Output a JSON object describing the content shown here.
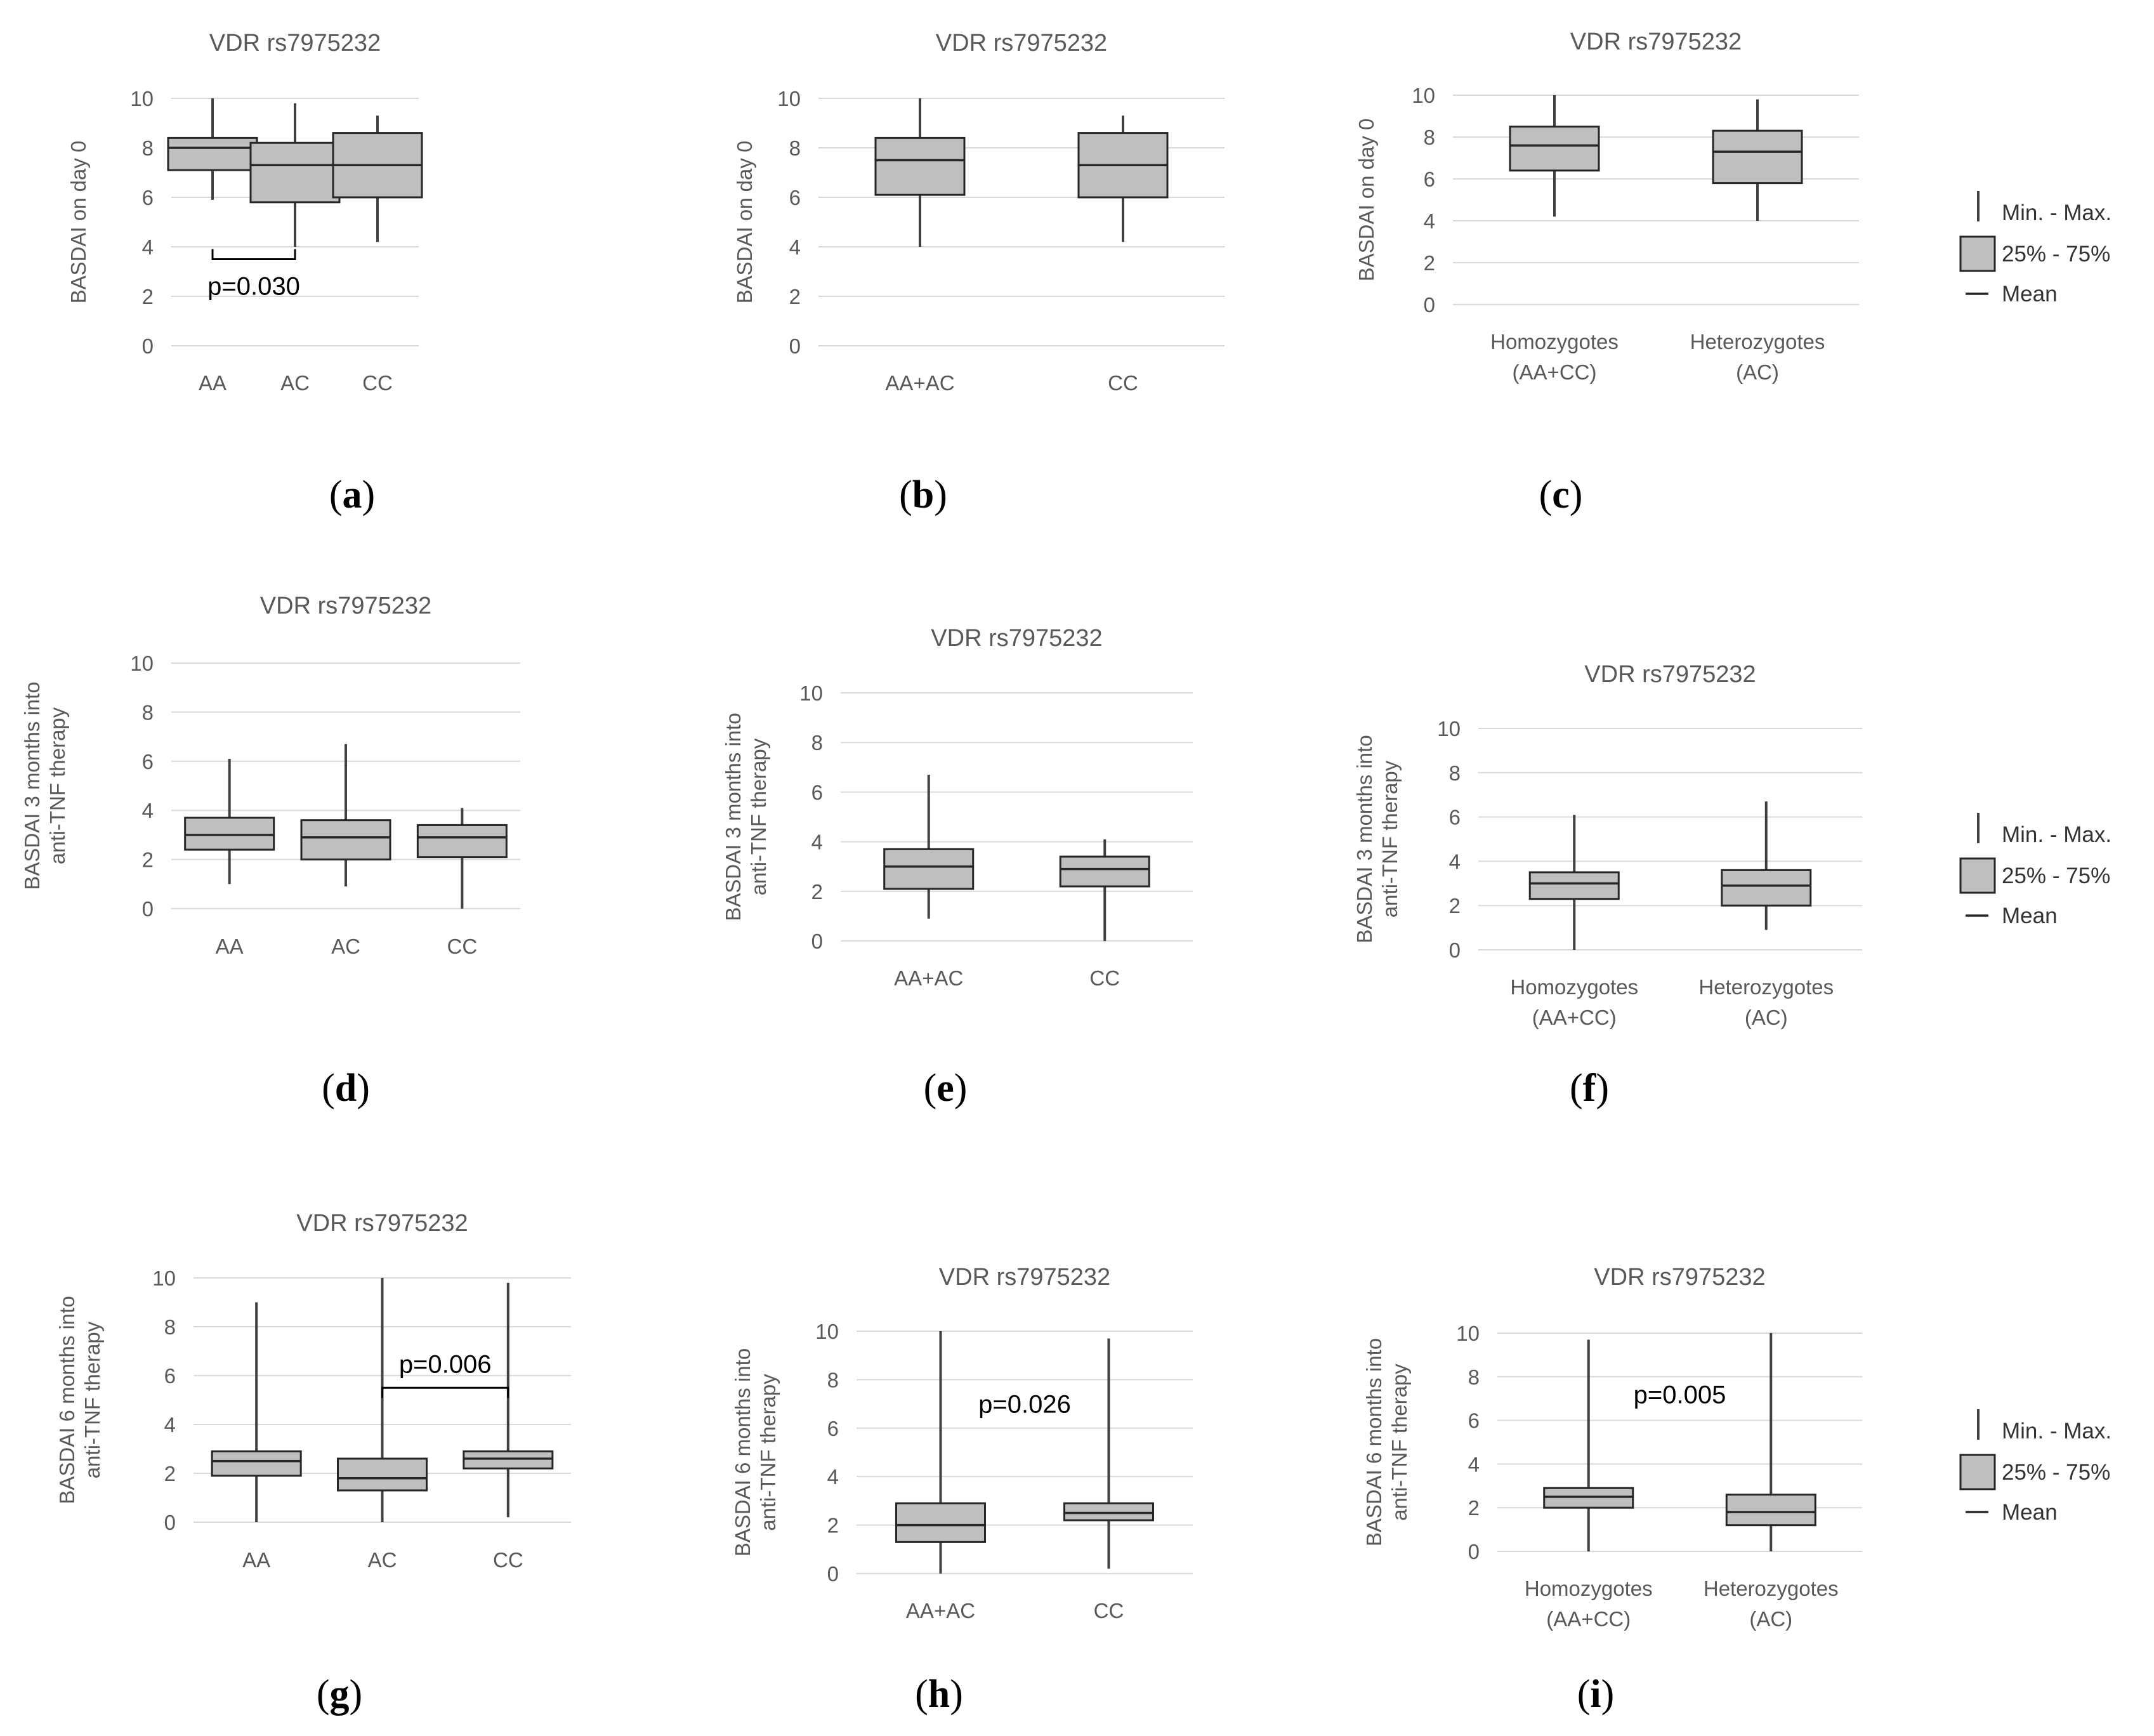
{
  "legend": {
    "minmax": "Min. - Max.",
    "iqr": "25% - 75%",
    "mean": "Mean"
  },
  "colors": {
    "box_fill": "#bfbfbf",
    "box_stroke": "#262626",
    "grid": "#d9d9d9",
    "text": "#595959"
  },
  "chart_data": [
    {
      "id": "a",
      "type": "boxplot",
      "title": "VDR rs7975232",
      "ylabel": [
        "BASDAI on day 0"
      ],
      "ylim": [
        0,
        10
      ],
      "yticks": [
        0,
        2,
        4,
        6,
        8,
        10
      ],
      "categories": [
        [
          "AA"
        ],
        [
          "AC"
        ],
        [
          "CC"
        ]
      ],
      "boxes": [
        {
          "min": 5.9,
          "q1": 7.1,
          "mean": 8.0,
          "q3": 8.4,
          "max": 10
        },
        {
          "min": 4.0,
          "q1": 5.8,
          "mean": 7.3,
          "q3": 8.2,
          "max": 9.8
        },
        {
          "min": 4.2,
          "q1": 6.0,
          "mean": 7.3,
          "q3": 8.6,
          "max": 9.3
        }
      ],
      "annotation": {
        "text": "p=0.030",
        "from": 0,
        "to": 1,
        "at": 3.5,
        "dir": "up"
      },
      "label": "a"
    },
    {
      "id": "b",
      "type": "boxplot",
      "title": "VDR rs7975232",
      "ylabel": [
        "BASDAI on day 0"
      ],
      "ylim": [
        0,
        10
      ],
      "yticks": [
        0,
        2,
        4,
        6,
        8,
        10
      ],
      "categories": [
        [
          "AA+AC"
        ],
        [
          "CC"
        ]
      ],
      "boxes": [
        {
          "min": 4.0,
          "q1": 6.1,
          "mean": 7.5,
          "q3": 8.4,
          "max": 10
        },
        {
          "min": 4.2,
          "q1": 6.0,
          "mean": 7.3,
          "q3": 8.6,
          "max": 9.3
        }
      ],
      "label": "b"
    },
    {
      "id": "c",
      "type": "boxplot",
      "title": "VDR rs7975232",
      "ylabel": [
        "BASDAI on day 0"
      ],
      "ylim": [
        0,
        10
      ],
      "yticks": [
        0,
        2,
        4,
        6,
        8,
        10
      ],
      "categories": [
        [
          "Homozygotes",
          "(AA+CC)"
        ],
        [
          "Heterozygotes",
          "(AC)"
        ]
      ],
      "boxes": [
        {
          "min": 4.2,
          "q1": 6.4,
          "mean": 7.6,
          "q3": 8.5,
          "max": 10
        },
        {
          "min": 4.0,
          "q1": 5.8,
          "mean": 7.3,
          "q3": 8.3,
          "max": 9.8
        }
      ],
      "label": "c"
    },
    {
      "id": "d",
      "type": "boxplot",
      "title": "VDR rs7975232",
      "ylabel": [
        "BASDAI 3 months into",
        "anti-TNF therapy"
      ],
      "ylim": [
        0,
        10
      ],
      "yticks": [
        0,
        2,
        4,
        6,
        8,
        10
      ],
      "categories": [
        [
          "AA"
        ],
        [
          "AC"
        ],
        [
          "CC"
        ]
      ],
      "boxes": [
        {
          "min": 1.0,
          "q1": 2.4,
          "mean": 3.0,
          "q3": 3.7,
          "max": 6.1
        },
        {
          "min": 0.9,
          "q1": 2.0,
          "mean": 2.9,
          "q3": 3.6,
          "max": 6.7
        },
        {
          "min": 0.0,
          "q1": 2.1,
          "mean": 2.9,
          "q3": 3.4,
          "max": 4.1
        }
      ],
      "label": "d"
    },
    {
      "id": "e",
      "type": "boxplot",
      "title": "VDR rs7975232",
      "ylabel": [
        "BASDAI 3 months into",
        "anti-TNF therapy"
      ],
      "ylim": [
        0,
        10
      ],
      "yticks": [
        0,
        2,
        4,
        6,
        8,
        10
      ],
      "categories": [
        [
          "AA+AC"
        ],
        [
          "CC"
        ]
      ],
      "boxes": [
        {
          "min": 0.9,
          "q1": 2.1,
          "mean": 3.0,
          "q3": 3.7,
          "max": 6.7
        },
        {
          "min": 0.0,
          "q1": 2.2,
          "mean": 2.9,
          "q3": 3.4,
          "max": 4.1
        }
      ],
      "label": "e"
    },
    {
      "id": "f",
      "type": "boxplot",
      "title": "VDR rs7975232",
      "ylabel": [
        "BASDAI 3 months into",
        "anti-TNF therapy"
      ],
      "ylim": [
        0,
        10
      ],
      "yticks": [
        0,
        2,
        4,
        6,
        8,
        10
      ],
      "categories": [
        [
          "Homozygotes",
          "(AA+CC)"
        ],
        [
          "Heterozygotes",
          "(AC)"
        ]
      ],
      "boxes": [
        {
          "min": 0.0,
          "q1": 2.3,
          "mean": 3.0,
          "q3": 3.5,
          "max": 6.1
        },
        {
          "min": 0.9,
          "q1": 2.0,
          "mean": 2.9,
          "q3": 3.6,
          "max": 6.7
        }
      ],
      "label": "f"
    },
    {
      "id": "g",
      "type": "boxplot",
      "title": "VDR rs7975232",
      "ylabel": [
        "BASDAI 6 months into",
        "anti-TNF therapy"
      ],
      "ylim": [
        0,
        10
      ],
      "yticks": [
        0,
        2,
        4,
        6,
        8,
        10
      ],
      "categories": [
        [
          "AA"
        ],
        [
          "AC"
        ],
        [
          "CC"
        ]
      ],
      "boxes": [
        {
          "min": 0.0,
          "q1": 1.9,
          "mean": 2.5,
          "q3": 2.9,
          "max": 9.0
        },
        {
          "min": 0.0,
          "q1": 1.3,
          "mean": 1.8,
          "q3": 2.6,
          "max": 10
        },
        {
          "min": 0.2,
          "q1": 2.2,
          "mean": 2.6,
          "q3": 2.9,
          "max": 9.8
        }
      ],
      "annotation": {
        "text": "p=0.006",
        "from": 1,
        "to": 2,
        "at": 5.5,
        "dir": "down"
      },
      "label": "g"
    },
    {
      "id": "h",
      "type": "boxplot",
      "title": "VDR rs7975232",
      "ylabel": [
        "BASDAI 6 months into",
        "anti-TNF therapy"
      ],
      "ylim": [
        0,
        10
      ],
      "yticks": [
        0,
        2,
        4,
        6,
        8,
        10
      ],
      "categories": [
        [
          "AA+AC"
        ],
        [
          "CC"
        ]
      ],
      "boxes": [
        {
          "min": 0.0,
          "q1": 1.3,
          "mean": 2.0,
          "q3": 2.9,
          "max": 10
        },
        {
          "min": 0.2,
          "q1": 2.2,
          "mean": 2.5,
          "q3": 2.9,
          "max": 9.7
        }
      ],
      "annotation": {
        "text": "p=0.026",
        "value_y": 7.0
      },
      "label": "h"
    },
    {
      "id": "i",
      "type": "boxplot",
      "title": "VDR rs7975232",
      "ylabel": [
        "BASDAI 6 months into",
        "anti-TNF therapy"
      ],
      "ylim": [
        0,
        10
      ],
      "yticks": [
        0,
        2,
        4,
        6,
        8,
        10
      ],
      "categories": [
        [
          "Homozygotes",
          "(AA+CC)"
        ],
        [
          "Heterozygotes",
          "(AC)"
        ]
      ],
      "boxes": [
        {
          "min": 0.0,
          "q1": 2.0,
          "mean": 2.5,
          "q3": 2.9,
          "max": 9.7
        },
        {
          "min": 0.0,
          "q1": 1.2,
          "mean": 1.8,
          "q3": 2.6,
          "max": 10
        }
      ],
      "annotation": {
        "text": "p=0.005",
        "value_y": 7.2
      },
      "label": "i"
    }
  ]
}
